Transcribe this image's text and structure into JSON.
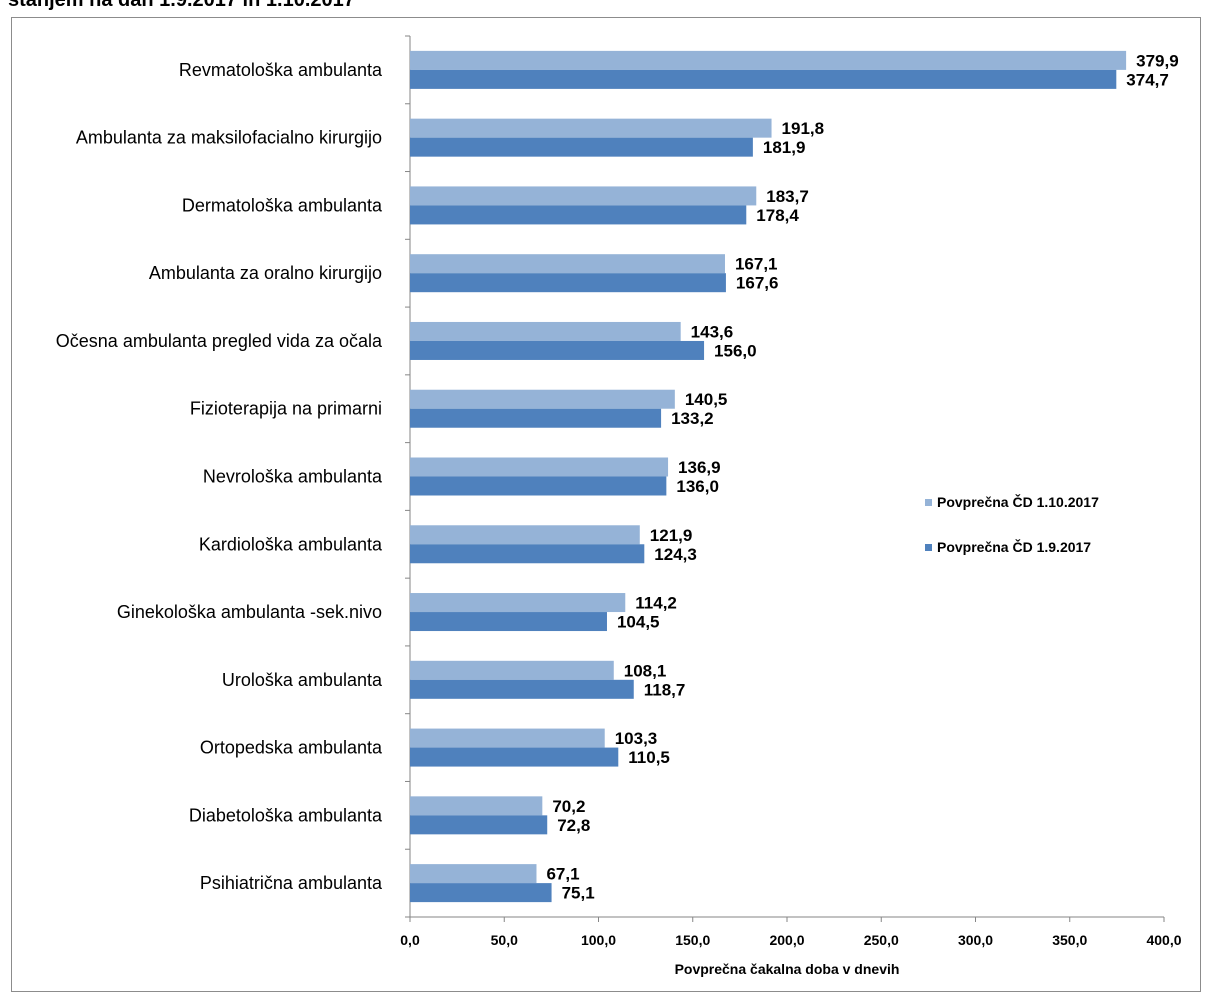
{
  "title": "stanjem na dan 1.9.2017 in 1.10.2017",
  "chart_data": {
    "type": "bar",
    "orientation": "horizontal",
    "categories": [
      "Revmatološka ambulanta",
      "Ambulanta za maksilofacialno kirurgijo",
      "Dermatološka ambulanta",
      "Ambulanta za oralno kirurgijo",
      "Očesna ambulanta  pregled vida za očala",
      "Fizioterapija na primarni",
      "Nevrološka ambulanta",
      "Kardiološka ambulanta",
      "Ginekološka ambulanta -sek.nivo",
      "Urološka ambulanta",
      "Ortopedska ambulanta",
      "Diabetološka ambulanta",
      "Psihiatrična ambulanta"
    ],
    "series": [
      {
        "name": "Povprečna ČD 1.10.2017",
        "color": "#95b3d7",
        "values": [
          379.9,
          191.8,
          183.7,
          167.1,
          143.6,
          140.5,
          136.9,
          121.9,
          114.2,
          108.1,
          103.3,
          70.2,
          67.1
        ],
        "labels": [
          "379,9",
          "191,8",
          "183,7",
          "167,1",
          "143,6",
          "140,5",
          "136,9",
          "121,9",
          "114,2",
          "108,1",
          "103,3",
          "70,2",
          "67,1"
        ]
      },
      {
        "name": "Povprečna ČD 1.9.2017",
        "color": "#4f81bd",
        "values": [
          374.7,
          181.9,
          178.4,
          167.6,
          156.0,
          133.2,
          136.0,
          124.3,
          104.5,
          118.7,
          110.5,
          72.8,
          75.1
        ],
        "labels": [
          "374,7",
          "181,9",
          "178,4",
          "167,6",
          "156,0",
          "133,2",
          "136,0",
          "124,3",
          "104,5",
          "118,7",
          "110,5",
          "72,8",
          "75,1"
        ]
      }
    ],
    "xlabel": "Povprečna čakalna doba v dnevih",
    "ylabel": "",
    "xlim": [
      0,
      400
    ],
    "x_ticks": [
      0,
      50,
      100,
      150,
      200,
      250,
      300,
      350,
      400
    ],
    "x_tick_labels": [
      "0,0",
      "50,0",
      "100,0",
      "150,0",
      "200,0",
      "250,0",
      "300,0",
      "350,0",
      "400,0"
    ],
    "grid": false,
    "legend_position": "right"
  }
}
